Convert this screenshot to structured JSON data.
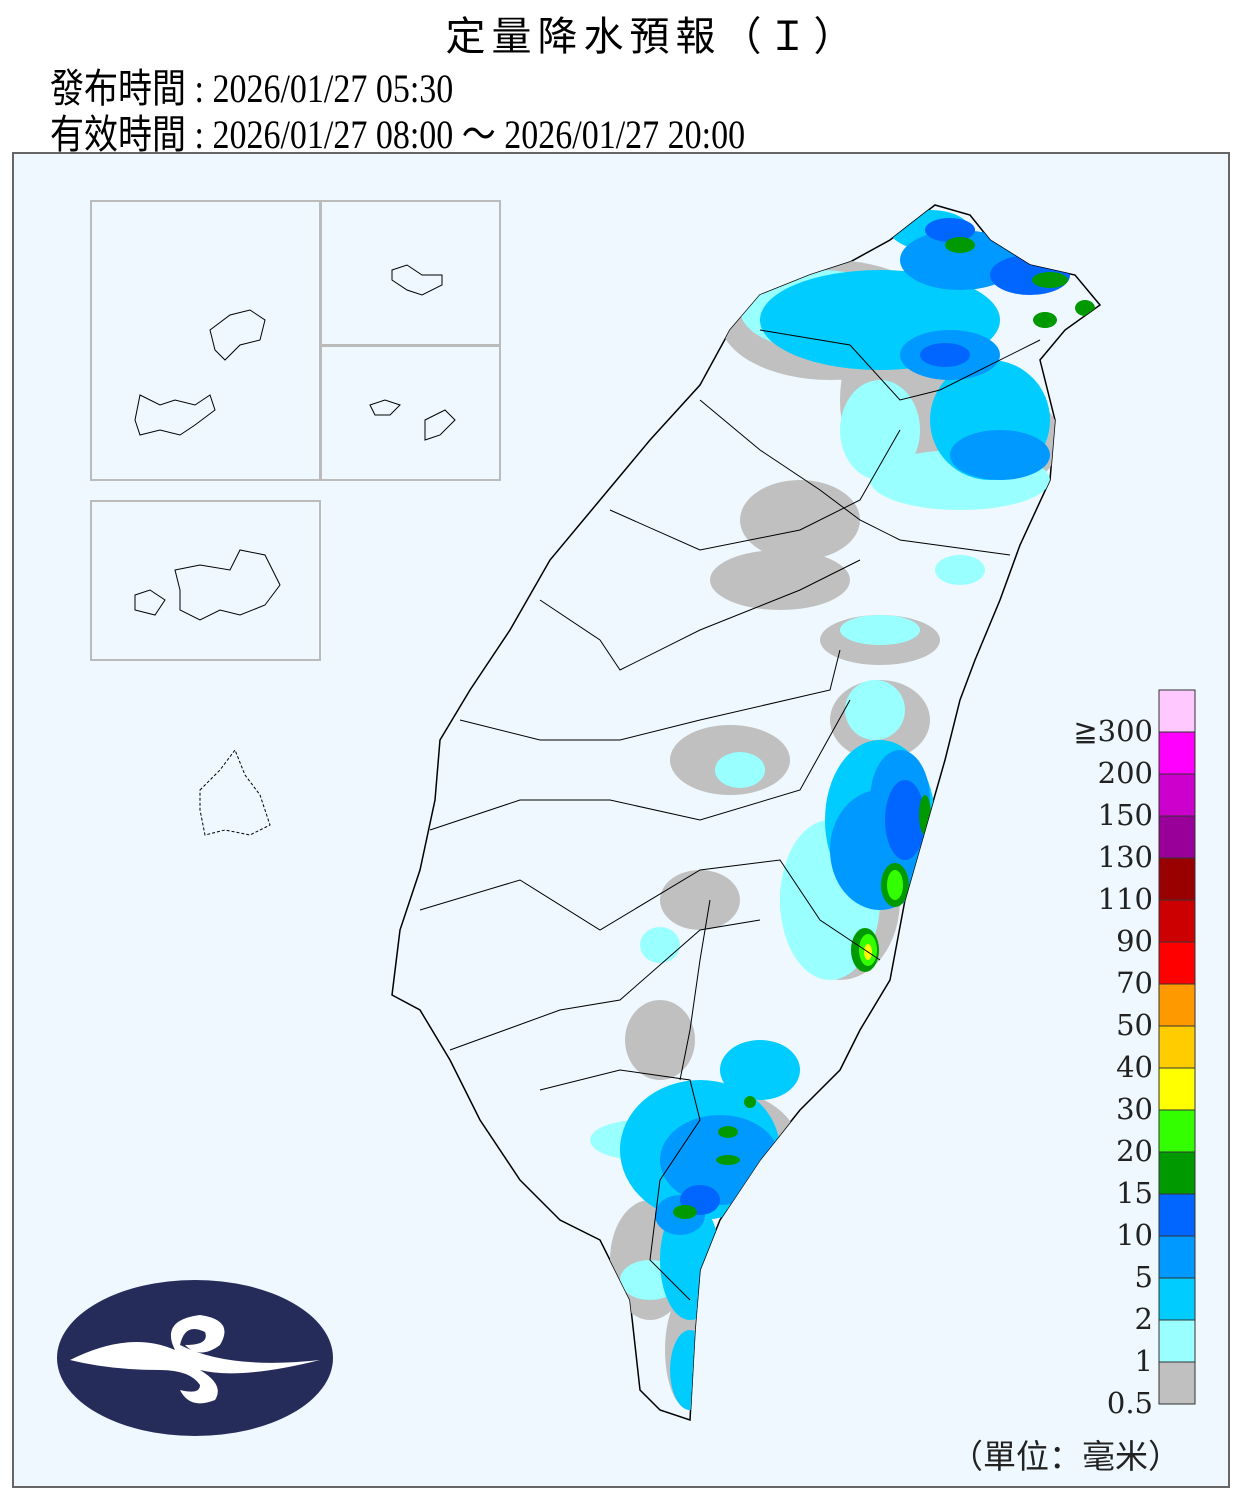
{
  "header": {
    "title": "定量降水預報（Ｉ）",
    "issue_label": "發布時間 : 2026/01/27 05:30",
    "valid_label": "有效時間 : 2026/01/27 08:00 ～ 2026/01/27 20:00"
  },
  "legend": {
    "unit": "（單位：毫米）",
    "labels": [
      "≧300",
      "200",
      "150",
      "130",
      "110",
      "90",
      "70",
      "50",
      "40",
      "30",
      "20",
      "15",
      "10",
      "5",
      "2",
      "1",
      "0.5"
    ],
    "colors": [
      "#ffc8ff",
      "#ff00ff",
      "#cc00cc",
      "#990099",
      "#990000",
      "#cc0000",
      "#ff0000",
      "#ff9900",
      "#ffcc00",
      "#ffff00",
      "#33ff00",
      "#009900",
      "#0066ff",
      "#0099ff",
      "#00ccff",
      "#99ffff",
      "#c0c0c0"
    ]
  },
  "map": {
    "background": "#eef8fe",
    "logo_color": "#262c5a",
    "logo": "Central Weather Administration emblem"
  }
}
